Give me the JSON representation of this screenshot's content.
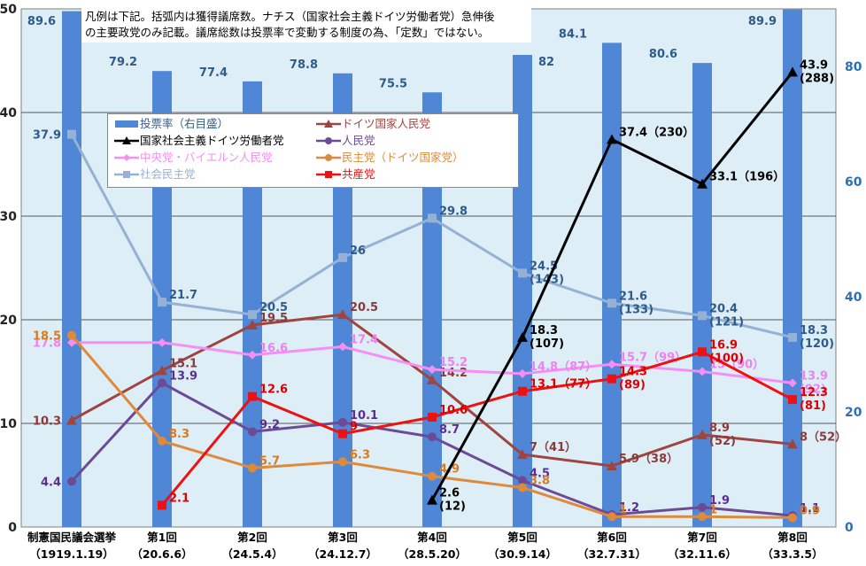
{
  "note": {
    "line1": "凡例は下記。括弧内は獲得議席数。ナチス（国家社会主義ドイツ労働者党）急伸後",
    "line2": "の主要政党のみ記載。議席総数は投票率で変動する制度の為、「定数」ではない。"
  },
  "chart_data": {
    "type": "bar+line",
    "categories": [
      {
        "name": "制憲国民議会選挙",
        "date": "（1919.1.19）"
      },
      {
        "name": "第1回",
        "date": "（20.6.6）"
      },
      {
        "name": "第2回",
        "date": "（24.5.4）"
      },
      {
        "name": "第3回",
        "date": "（24.12.7）"
      },
      {
        "name": "第4回",
        "date": "（28.5.20）"
      },
      {
        "name": "第5回",
        "date": "（30.9.14）"
      },
      {
        "name": "第6回",
        "date": "（32.7.31）"
      },
      {
        "name": "第7回",
        "date": "（32.11.6）"
      },
      {
        "name": "第8回",
        "date": "（33.3.5）"
      }
    ],
    "left_axis": {
      "min": 0,
      "max": 50,
      "ticks": [
        "0",
        "10",
        "20",
        "30",
        "40",
        "50"
      ]
    },
    "right_axis": {
      "min": 0,
      "max": 90,
      "ticks": [
        "0",
        "20",
        "40",
        "60",
        "80"
      ]
    },
    "bars": {
      "name": "投票率（右目盛）",
      "color": "#4f87d6",
      "values": [
        89.6,
        79.2,
        77.4,
        78.8,
        75.5,
        82,
        84.1,
        80.6,
        89.9
      ],
      "labels": [
        "89.6",
        "79.2",
        "77.4",
        "78.8",
        "75.5",
        "82",
        "84.1",
        "80.6",
        "89.9"
      ]
    },
    "series": [
      {
        "name": "社会民主党",
        "color": "#95b1d4",
        "label_color": "#2e5b8a",
        "marker": "square",
        "values": [
          37.9,
          21.7,
          20.5,
          26,
          29.8,
          24.5,
          21.6,
          20.4,
          18.3
        ],
        "labels": [
          "37.9",
          "21.7",
          "20.5",
          "26",
          "29.8",
          "24.5\n(143)",
          "21.6\n(133)",
          "20.4\n(121)",
          "18.3\n(120)"
        ]
      },
      {
        "name": "ドイツ国家人民党",
        "color": "#a0443f",
        "label_color": "#8b3a3a",
        "marker": "triangle",
        "values": [
          10.3,
          15.1,
          19.5,
          20.5,
          14.2,
          7,
          5.9,
          8.9,
          8
        ],
        "labels": [
          "10.3",
          "15.1",
          "19.5",
          "20.5",
          "14.2",
          "7（41）",
          "5.9（38）",
          "8.9\n(52)",
          "8（52）"
        ]
      },
      {
        "name": "中央党・バイエルン人民党",
        "color": "#f58ef5",
        "label_color": "#ee82ee",
        "marker": "diamond",
        "values": [
          17.8,
          17.8,
          16.6,
          17.4,
          15.2,
          14.8,
          15.7,
          15,
          13.9
        ],
        "labels": [
          "17.8",
          "",
          "16.6",
          "17.4",
          "15.2",
          "14.8（87）",
          "15.7（99）",
          "15（90）",
          "13.9\n(92)"
        ]
      },
      {
        "name": "人民党",
        "color": "#6c4a96",
        "label_color": "#5c2d91",
        "marker": "circle",
        "values": [
          4.4,
          13.9,
          9.2,
          10.1,
          8.7,
          4.5,
          1.2,
          1.9,
          1.1
        ],
        "labels": [
          "4.4",
          "13.9",
          "9.2",
          "10.1",
          "8.7",
          "4.5",
          "1.2",
          "1.9",
          "1.1"
        ]
      },
      {
        "name": "民主党（ドイツ国家党）",
        "color": "#de8a3a",
        "label_color": "#d97a22",
        "marker": "circle",
        "values": [
          18.5,
          8.3,
          5.7,
          6.3,
          4.9,
          3.8,
          1,
          1,
          0.9
        ],
        "labels": [
          "18.5",
          "8.3",
          "5.7",
          "6.3",
          "4.9",
          "3.8",
          "1",
          "1",
          "0.9"
        ]
      },
      {
        "name": "共産党",
        "color": "#ee1111",
        "label_color": "#dd0000",
        "marker": "square",
        "values": [
          null,
          2.1,
          12.6,
          9,
          10.6,
          13.1,
          14.3,
          16.9,
          12.3
        ],
        "labels": [
          "",
          "2.1",
          "12.6",
          "9",
          "10.6",
          "13.1（77）",
          "14.3\n(89)",
          "16.9\n(100)",
          "12.3\n(81)"
        ]
      },
      {
        "name": "国家社会主義ドイツ労働者党",
        "color": "#000000",
        "label_color": "#000000",
        "marker": "triangle",
        "values": [
          null,
          null,
          null,
          null,
          2.6,
          18.3,
          37.4,
          33.1,
          43.9
        ],
        "labels": [
          "",
          "",
          "",
          "",
          "2.6\n(12)",
          "18.3\n(107)",
          "37.4（230）",
          "33.1（196）",
          "43.9\n(288)"
        ]
      }
    ],
    "legend": [
      {
        "name": "投票率（右目盛）",
        "color": "#4f87d6",
        "marker": "bar"
      },
      {
        "name": "ドイツ国家人民党",
        "color": "#a0443f",
        "marker": "triangle"
      },
      {
        "name": "国家社会主義ドイツ労働者党",
        "color": "#000000",
        "marker": "triangle"
      },
      {
        "name": "人民党",
        "color": "#6c4a96",
        "marker": "circle"
      },
      {
        "name": "中央党・バイエルン人民党",
        "color": "#f58ef5",
        "marker": "diamond"
      },
      {
        "name": "民主党（ドイツ国家党）",
        "color": "#de8a3a",
        "marker": "circle"
      },
      {
        "name": "社会民主党",
        "color": "#95b1d4",
        "marker": "square"
      },
      {
        "name": "共産党",
        "color": "#ee1111",
        "marker": "square"
      }
    ],
    "plot_background": "#ddeef6",
    "gridlines": true
  }
}
